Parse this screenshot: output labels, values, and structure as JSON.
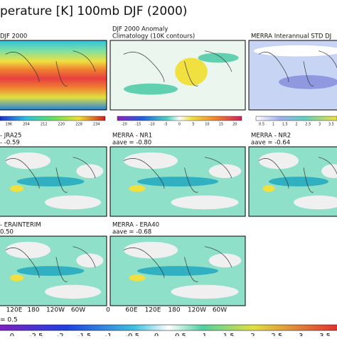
{
  "title": "perature [K] 100mb  DJF (2000)",
  "panels": [
    {
      "lines": [
        "DJF 2000"
      ]
    },
    {
      "lines": [
        "DJF 2000 Anomaly",
        "Climatology (10K contours)"
      ]
    },
    {
      "lines": [
        "MERRA Interannual STD DJ"
      ]
    },
    {
      "lines": [
        "- JRA25",
        "- -0.59"
      ]
    },
    {
      "lines": [
        "MERRA - NR1",
        "aave = -0.80"
      ]
    },
    {
      "lines": [
        "MERRA - NR2",
        "aave = -0.64"
      ]
    },
    {
      "lines": [
        "- ERAINTERIM",
        "0.50"
      ]
    },
    {
      "lines": [
        "MERRA - ERA40",
        "aave = -0.68"
      ]
    }
  ],
  "colorbars": [
    {
      "ticks": [
        "196",
        "204",
        "212",
        "220",
        "228",
        "234"
      ]
    },
    {
      "ticks": [
        "-20",
        "-15",
        "-10",
        "-5",
        "0",
        "5",
        "10",
        "15",
        "20"
      ]
    },
    {
      "ticks": [
        "0.5",
        "1",
        "1.5",
        "2",
        "2.5",
        "3",
        "3.5"
      ]
    }
  ],
  "x_axis_labels": [
    "120E",
    "180",
    "120W",
    "60W",
    "0",
    "60E",
    "120E",
    "180",
    "120W",
    "60W"
  ],
  "bottom_note": "= 0.5",
  "bottom_colorbar_ticks": [
    "0",
    "-2.5",
    "-2",
    "-1.5",
    "-1",
    "-0.5",
    "0",
    "0.5",
    "1",
    "1.5",
    "2",
    "2.5",
    "3",
    "3.5"
  ]
}
